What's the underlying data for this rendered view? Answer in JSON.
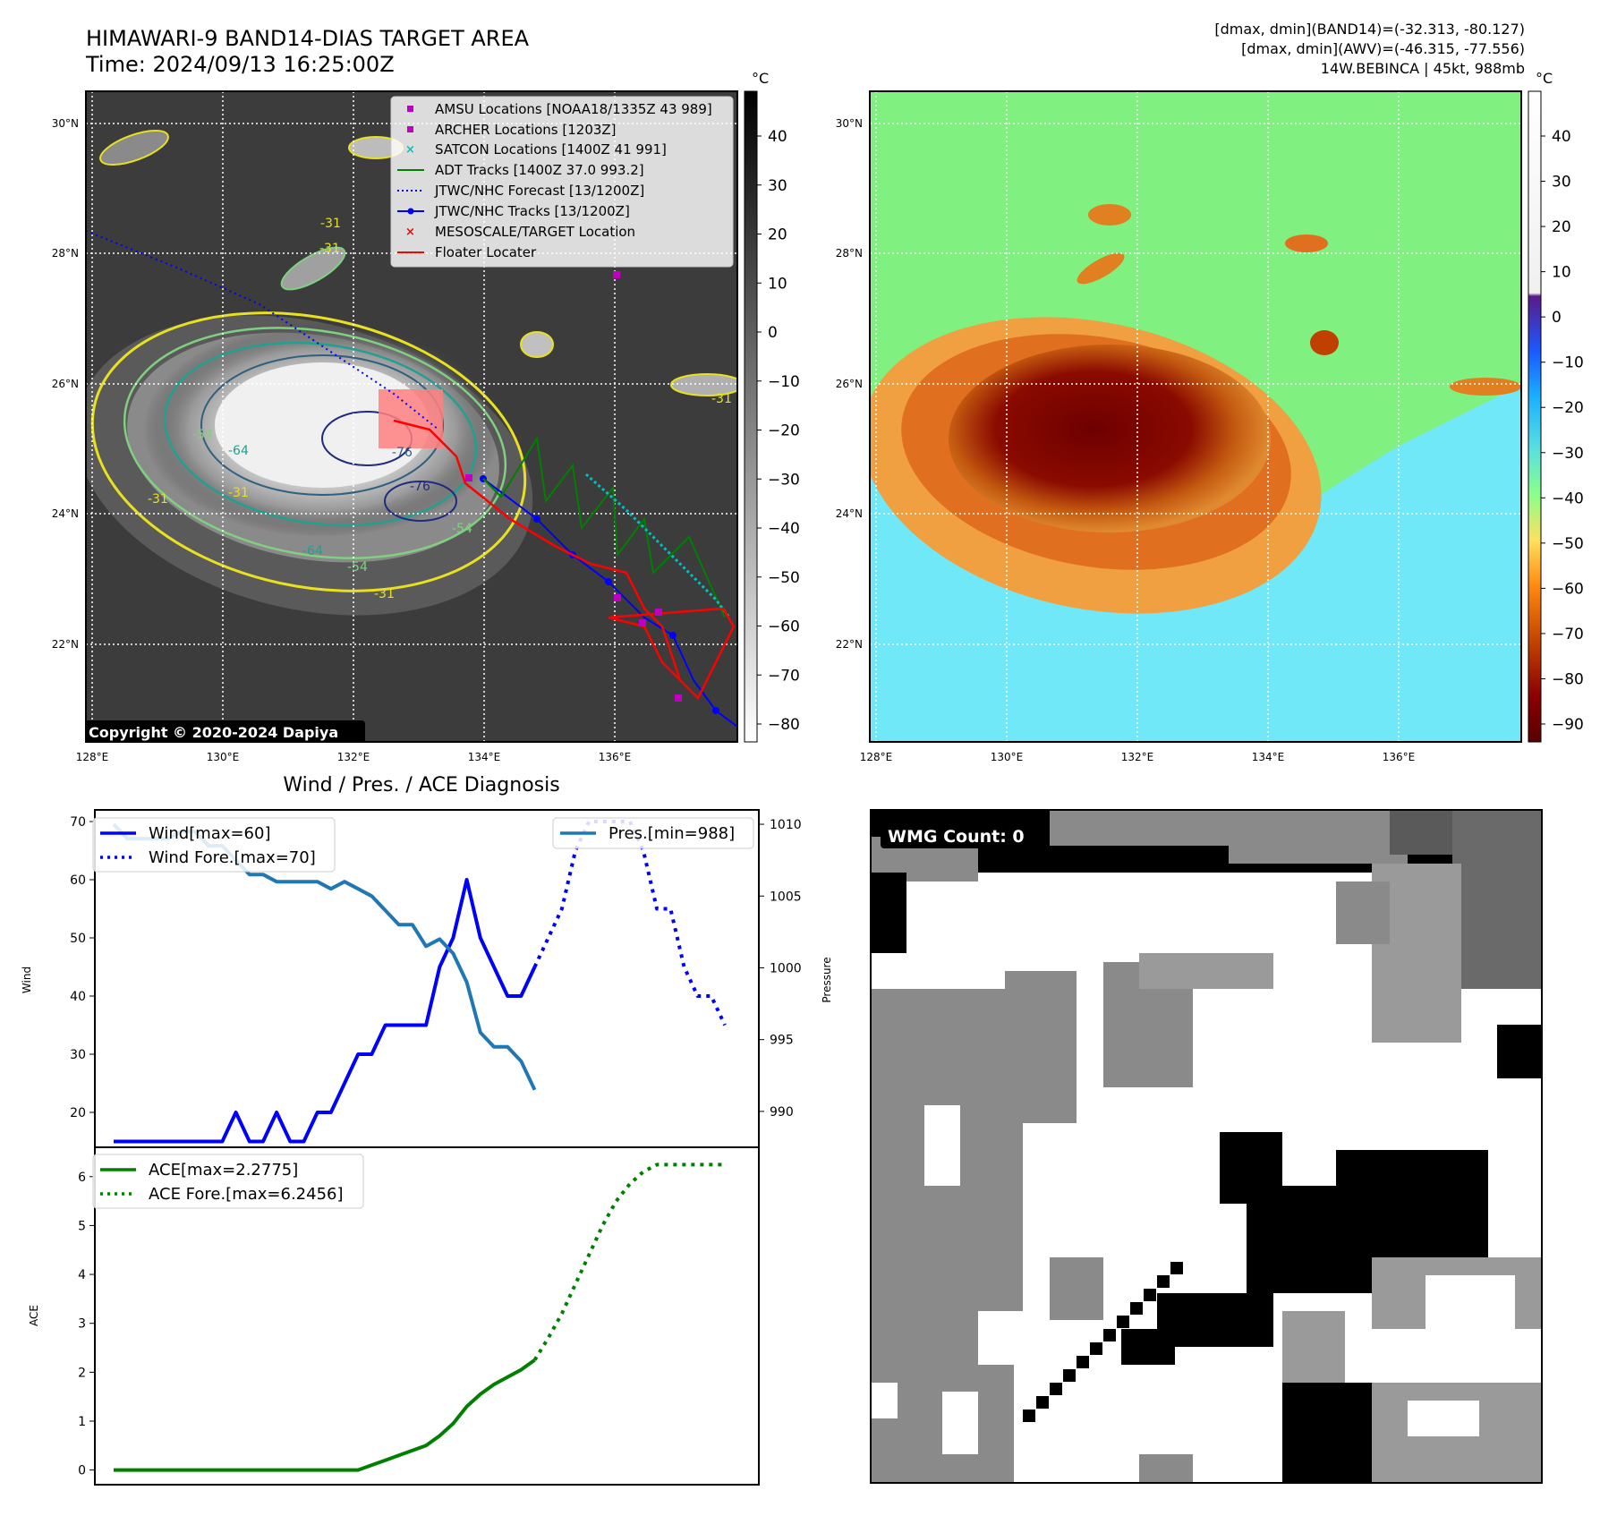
{
  "header": {
    "title": "HIMAWARI-9 BAND14-DIAS TARGET AREA",
    "time": "Time: 2024/09/13 16:25:00Z",
    "stats_band14": "[dmax, dmin](BAND14)=(-32.313, -80.127)",
    "stats_awv": "[dmax, dmin](AWV)=(-46.315, -77.556)",
    "storm": "14W.BEBINCA | 45kt, 988mb"
  },
  "map": {
    "lon_labels": [
      "128°E",
      "130°E",
      "132°E",
      "134°E",
      "136°E"
    ],
    "lat_labels": [
      "30°N",
      "28°N",
      "26°N",
      "24°N",
      "22°N"
    ],
    "copyright": "Copyright © 2020-2024 Dapiya",
    "contour_labels": [
      "-31",
      "-31",
      "-54",
      "-64",
      "-76",
      "-76",
      "-54",
      "-64",
      "-54",
      "-31",
      "-31",
      "-31",
      "-31"
    ],
    "legend": [
      {
        "label": "AMSU Locations [NOAA18/1335Z 43 989]",
        "marker": "square",
        "color": "#c000c0"
      },
      {
        "label": "ARCHER Locations [1203Z]",
        "marker": "square",
        "color": "#c000c0"
      },
      {
        "label": "SATCON Locations [1400Z 41 991]",
        "marker": "x",
        "color": "#00c0c0"
      },
      {
        "label": "ADT Tracks [1400Z 37.0 993.2]",
        "marker": "line",
        "color": "#007f00"
      },
      {
        "label": "JTWC/NHC Forecast [13/1200Z]",
        "marker": "dotted",
        "color": "#0000ff"
      },
      {
        "label": "JTWC/NHC Tracks [13/1200Z]",
        "marker": "line-dot",
        "color": "#0000ff"
      },
      {
        "label": "MESOSCALE/TARGET Location",
        "marker": "x",
        "color": "#ff0000"
      },
      {
        "label": "Floater Locater",
        "marker": "line",
        "color": "#ff0000"
      }
    ]
  },
  "colorbar_gray": {
    "unit": "°C",
    "ticks": [
      "40",
      "30",
      "20",
      "10",
      "0",
      "−10",
      "−20",
      "−30",
      "−40",
      "−50",
      "−60",
      "−70",
      "−80"
    ]
  },
  "colorbar_awv": {
    "unit": "°C",
    "ticks": [
      "40",
      "30",
      "20",
      "10",
      "0",
      "−10",
      "−20",
      "−30",
      "−40",
      "−50",
      "−60",
      "−70",
      "−80",
      "−90"
    ]
  },
  "diagnosis_title": "Wind / Pres. / ACE Diagnosis",
  "wmg_label": "WMG Count: 0",
  "colors": {
    "wind": "#0000ff",
    "pressure": "#1f77b4",
    "ace": "#008000",
    "floater": "#ff0000"
  },
  "chart_data": [
    {
      "type": "line",
      "title": "Wind / Pres. / ACE Diagnosis",
      "ylabel": "Wind",
      "ylim": [
        14,
        72
      ],
      "yticks": [
        "20",
        "30",
        "40",
        "50",
        "60",
        "70"
      ],
      "x": [
        0,
        1,
        2,
        3,
        4,
        5,
        6,
        7,
        8,
        9,
        10,
        11,
        12,
        13,
        14,
        15,
        16,
        17,
        18,
        19,
        20,
        21,
        22,
        23,
        24,
        25,
        26,
        27,
        28,
        29,
        30,
        31,
        32,
        33,
        34,
        35,
        36,
        37,
        38,
        39,
        40,
        41,
        42,
        43,
        44,
        45
      ],
      "series": [
        {
          "name": "Wind[max=60]",
          "style": "solid",
          "values": [
            15,
            15,
            15,
            15,
            15,
            15,
            15,
            15,
            15,
            20,
            15,
            15,
            20,
            15,
            15,
            20,
            20,
            25,
            30,
            30,
            35,
            35,
            35,
            35,
            45,
            50,
            60,
            50,
            45,
            40,
            40,
            45,
            null,
            null,
            null,
            null,
            null,
            null,
            null,
            null,
            null,
            null,
            null,
            null,
            null,
            null
          ]
        },
        {
          "name": "Wind Fore.[max=70]",
          "style": "dotted",
          "values": [
            null,
            null,
            null,
            null,
            null,
            null,
            null,
            null,
            null,
            null,
            null,
            null,
            null,
            null,
            null,
            null,
            null,
            null,
            null,
            null,
            null,
            null,
            null,
            null,
            null,
            null,
            null,
            null,
            null,
            null,
            null,
            45,
            50,
            55,
            65,
            70,
            70,
            70,
            70,
            65,
            55,
            55,
            45,
            40,
            40,
            35
          ]
        }
      ]
    },
    {
      "type": "line",
      "ylabel": "Pressure",
      "ylim": [
        987.5,
        1011
      ],
      "yticks": [
        "990",
        "995",
        "1000",
        "1005",
        "1010"
      ],
      "x": [
        0,
        1,
        2,
        3,
        4,
        5,
        6,
        7,
        8,
        9,
        10,
        11,
        12,
        13,
        14,
        15,
        16,
        17,
        18,
        19,
        20,
        21,
        22,
        23,
        24,
        25,
        26,
        27,
        28,
        29,
        30,
        31
      ],
      "series": [
        {
          "name": "Pres.[min=988]",
          "style": "solid",
          "values": [
            1010,
            1009,
            1009,
            1009,
            1009,
            1009.5,
            1009.5,
            1008.5,
            1008.5,
            1007.5,
            1006.5,
            1006.5,
            1006,
            1006,
            1006,
            1006,
            1005.5,
            1006,
            1005.5,
            1005,
            1004,
            1003,
            1003,
            1001.5,
            1002,
            1001,
            999,
            995.5,
            994.5,
            994.5,
            993.5,
            991.5
          ]
        }
      ]
    },
    {
      "type": "line",
      "ylabel": "ACE",
      "ylim": [
        -0.3,
        6.6
      ],
      "yticks": [
        "0",
        "1",
        "2",
        "3",
        "4",
        "5",
        "6"
      ],
      "x": [
        0,
        1,
        2,
        3,
        4,
        5,
        6,
        7,
        8,
        9,
        10,
        11,
        12,
        13,
        14,
        15,
        16,
        17,
        18,
        19,
        20,
        21,
        22,
        23,
        24,
        25,
        26,
        27,
        28,
        29,
        30,
        31,
        32,
        33,
        34,
        35,
        36,
        37,
        38,
        39,
        40,
        41,
        42,
        43,
        44,
        45
      ],
      "series": [
        {
          "name": "ACE[max=2.2775]",
          "style": "solid",
          "values": [
            0,
            0,
            0,
            0,
            0,
            0,
            0,
            0,
            0,
            0,
            0,
            0,
            0,
            0,
            0,
            0,
            0,
            0,
            0,
            0.1,
            0.2,
            0.3,
            0.4,
            0.5,
            0.7,
            0.95,
            1.3,
            1.55,
            1.75,
            1.9,
            2.05,
            2.25,
            null,
            null,
            null,
            null,
            null,
            null,
            null,
            null,
            null,
            null,
            null,
            null,
            null,
            null
          ]
        },
        {
          "name": "ACE Fore.[max=6.2456]",
          "style": "dotted",
          "values": [
            null,
            null,
            null,
            null,
            null,
            null,
            null,
            null,
            null,
            null,
            null,
            null,
            null,
            null,
            null,
            null,
            null,
            null,
            null,
            null,
            null,
            null,
            null,
            null,
            null,
            null,
            null,
            null,
            null,
            null,
            null,
            2.25,
            2.7,
            3.2,
            3.8,
            4.4,
            5.0,
            5.5,
            5.85,
            6.1,
            6.2456,
            6.2456,
            6.2456,
            6.2456,
            6.2456,
            6.2456
          ]
        }
      ]
    }
  ]
}
